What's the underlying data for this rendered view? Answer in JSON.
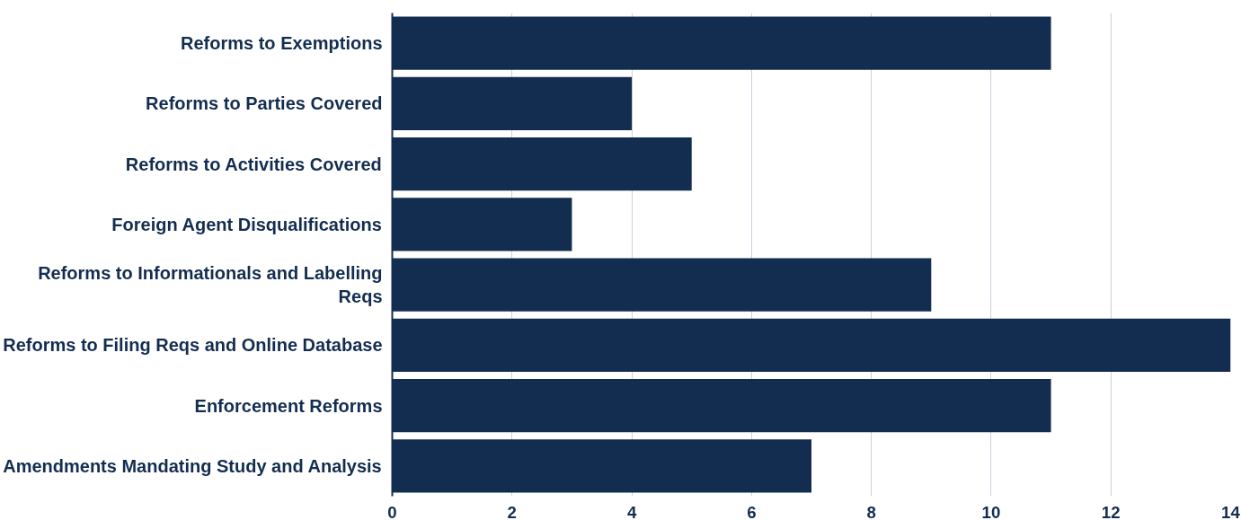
{
  "chart_data": {
    "type": "bar",
    "orientation": "horizontal",
    "categories": [
      "Reforms to Exemptions",
      "Reforms to Parties Covered",
      "Reforms to Activities Covered",
      "Foreign Agent Disqualifications",
      "Reforms to Informationals and Labelling Reqs",
      "Reforms to Filing Reqs and Online Database",
      "Enforcement Reforms",
      "Amendments Mandating Study and Analysis"
    ],
    "values": [
      11,
      4,
      5,
      3,
      9,
      14,
      11,
      7
    ],
    "color": "#132d50",
    "xlim": [
      0,
      14
    ],
    "xticks": [
      0,
      2,
      4,
      6,
      8,
      10,
      12,
      14
    ],
    "grid": "x"
  }
}
